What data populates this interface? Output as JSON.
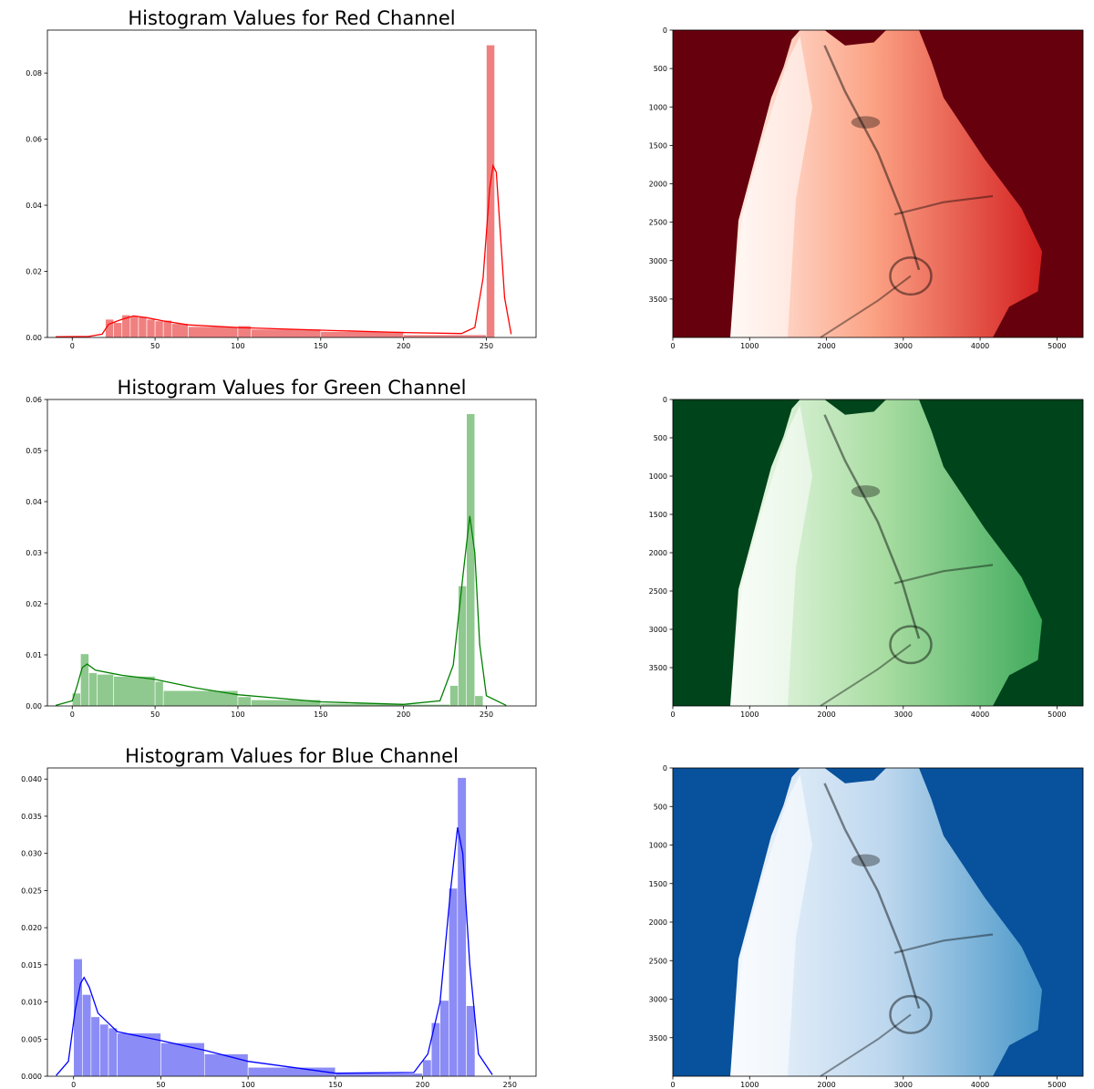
{
  "colors": {
    "red": "#ff0000",
    "red_fill": "#f08080",
    "red_bg": "#67000d",
    "green": "#008000",
    "green_fill": "#8fc98f",
    "green_bg": "#00441b",
    "blue": "#0000ff",
    "blue_fill": "#8c8cf6",
    "blue_bg": "#08519c"
  },
  "chart_data": [
    {
      "type": "bar",
      "title": "Histogram Values for Red Channel",
      "xlabel": "",
      "ylabel": "",
      "xlim": [
        -15,
        280
      ],
      "ylim": [
        0,
        0.093
      ],
      "xticks": [
        0,
        50,
        100,
        150,
        200,
        250
      ],
      "yticks": [
        0.0,
        0.02,
        0.04,
        0.06,
        0.08
      ],
      "ytick_labels": [
        "0.00",
        "0.02",
        "0.04",
        "0.06",
        "0.08"
      ],
      "bins": [
        {
          "x0": 20,
          "x1": 25,
          "v": 0.0055
        },
        {
          "x0": 25,
          "x1": 30,
          "v": 0.0045
        },
        {
          "x0": 30,
          "x1": 35,
          "v": 0.0068
        },
        {
          "x0": 35,
          "x1": 40,
          "v": 0.0065
        },
        {
          "x0": 40,
          "x1": 45,
          "v": 0.0062
        },
        {
          "x0": 45,
          "x1": 50,
          "v": 0.0055
        },
        {
          "x0": 50,
          "x1": 55,
          "v": 0.005
        },
        {
          "x0": 55,
          "x1": 60,
          "v": 0.0052
        },
        {
          "x0": 60,
          "x1": 70,
          "v": 0.0042
        },
        {
          "x0": 70,
          "x1": 100,
          "v": 0.0033
        },
        {
          "x0": 100,
          "x1": 108,
          "v": 0.0035
        },
        {
          "x0": 108,
          "x1": 150,
          "v": 0.0025
        },
        {
          "x0": 150,
          "x1": 200,
          "v": 0.0018
        },
        {
          "x0": 200,
          "x1": 250,
          "v": 0.0008
        },
        {
          "x0": 250,
          "x1": 255,
          "v": 0.0885
        }
      ],
      "kde": [
        [
          -10,
          0.0002
        ],
        [
          10,
          0.0003
        ],
        [
          18,
          0.001
        ],
        [
          22,
          0.004
        ],
        [
          30,
          0.0055
        ],
        [
          37,
          0.0065
        ],
        [
          45,
          0.006
        ],
        [
          55,
          0.005
        ],
        [
          70,
          0.0038
        ],
        [
          100,
          0.003
        ],
        [
          150,
          0.0022
        ],
        [
          200,
          0.0015
        ],
        [
          235,
          0.0012
        ],
        [
          243,
          0.003
        ],
        [
          248,
          0.018
        ],
        [
          252,
          0.045
        ],
        [
          254,
          0.052
        ],
        [
          256,
          0.05
        ],
        [
          258,
          0.035
        ],
        [
          261,
          0.012
        ],
        [
          265,
          0.001
        ]
      ]
    },
    {
      "type": "bar",
      "title": "Histogram Values for Green Channel",
      "xlabel": "",
      "ylabel": "",
      "xlim": [
        -15,
        280
      ],
      "ylim": [
        0,
        0.06
      ],
      "xticks": [
        0,
        50,
        100,
        150,
        200,
        250
      ],
      "yticks": [
        0.0,
        0.01,
        0.02,
        0.03,
        0.04,
        0.05,
        0.06
      ],
      "ytick_labels": [
        "0.00",
        "0.01",
        "0.02",
        "0.03",
        "0.04",
        "0.05",
        "0.06"
      ],
      "bins": [
        {
          "x0": 0,
          "x1": 5,
          "v": 0.0025
        },
        {
          "x0": 5,
          "x1": 10,
          "v": 0.0102
        },
        {
          "x0": 10,
          "x1": 15,
          "v": 0.0065
        },
        {
          "x0": 15,
          "x1": 25,
          "v": 0.0062
        },
        {
          "x0": 25,
          "x1": 50,
          "v": 0.0058
        },
        {
          "x0": 50,
          "x1": 55,
          "v": 0.0048
        },
        {
          "x0": 55,
          "x1": 100,
          "v": 0.003
        },
        {
          "x0": 100,
          "x1": 108,
          "v": 0.0018
        },
        {
          "x0": 108,
          "x1": 150,
          "v": 0.0012
        },
        {
          "x0": 150,
          "x1": 200,
          "v": 0.0005
        },
        {
          "x0": 200,
          "x1": 228,
          "v": 0.0003
        },
        {
          "x0": 228,
          "x1": 233,
          "v": 0.004
        },
        {
          "x0": 233,
          "x1": 238,
          "v": 0.0235
        },
        {
          "x0": 238,
          "x1": 243,
          "v": 0.0572
        },
        {
          "x0": 243,
          "x1": 248,
          "v": 0.002
        }
      ],
      "kde": [
        [
          -10,
          0.0001
        ],
        [
          0,
          0.001
        ],
        [
          3,
          0.004
        ],
        [
          6,
          0.0075
        ],
        [
          9,
          0.0082
        ],
        [
          14,
          0.007
        ],
        [
          30,
          0.006
        ],
        [
          50,
          0.0052
        ],
        [
          75,
          0.0035
        ],
        [
          100,
          0.0022
        ],
        [
          150,
          0.0008
        ],
        [
          200,
          0.0003
        ],
        [
          222,
          0.001
        ],
        [
          230,
          0.008
        ],
        [
          236,
          0.026
        ],
        [
          240,
          0.0372
        ],
        [
          243,
          0.03
        ],
        [
          246,
          0.012
        ],
        [
          250,
          0.002
        ],
        [
          262,
          0.0001
        ]
      ]
    },
    {
      "type": "bar",
      "title": "Histogram Values for Blue Channel",
      "xlabel": "",
      "ylabel": "",
      "xlim": [
        -15,
        265
      ],
      "ylim": [
        0,
        0.0415
      ],
      "xticks": [
        0,
        50,
        100,
        150,
        200,
        250
      ],
      "yticks": [
        0.0,
        0.005,
        0.01,
        0.015,
        0.02,
        0.025,
        0.03,
        0.035,
        0.04
      ],
      "ytick_labels": [
        "0.000",
        "0.005",
        "0.010",
        "0.015",
        "0.020",
        "0.025",
        "0.030",
        "0.035",
        "0.040"
      ],
      "bins": [
        {
          "x0": 0,
          "x1": 5,
          "v": 0.0158
        },
        {
          "x0": 5,
          "x1": 10,
          "v": 0.011
        },
        {
          "x0": 10,
          "x1": 15,
          "v": 0.008
        },
        {
          "x0": 15,
          "x1": 20,
          "v": 0.007
        },
        {
          "x0": 20,
          "x1": 25,
          "v": 0.0065
        },
        {
          "x0": 25,
          "x1": 50,
          "v": 0.0058
        },
        {
          "x0": 50,
          "x1": 75,
          "v": 0.0045
        },
        {
          "x0": 75,
          "x1": 100,
          "v": 0.003
        },
        {
          "x0": 100,
          "x1": 150,
          "v": 0.0012
        },
        {
          "x0": 150,
          "x1": 200,
          "v": 0.0004
        },
        {
          "x0": 200,
          "x1": 205,
          "v": 0.0022
        },
        {
          "x0": 205,
          "x1": 210,
          "v": 0.0072
        },
        {
          "x0": 210,
          "x1": 215,
          "v": 0.0102
        },
        {
          "x0": 215,
          "x1": 220,
          "v": 0.0253
        },
        {
          "x0": 220,
          "x1": 225,
          "v": 0.0402
        },
        {
          "x0": 225,
          "x1": 230,
          "v": 0.0095
        }
      ],
      "kde": [
        [
          -10,
          0.0001
        ],
        [
          -3,
          0.002
        ],
        [
          1,
          0.009
        ],
        [
          4,
          0.0125
        ],
        [
          6,
          0.0133
        ],
        [
          9,
          0.012
        ],
        [
          14,
          0.0085
        ],
        [
          25,
          0.006
        ],
        [
          50,
          0.0048
        ],
        [
          75,
          0.0035
        ],
        [
          100,
          0.002
        ],
        [
          150,
          0.0004
        ],
        [
          195,
          0.0005
        ],
        [
          203,
          0.003
        ],
        [
          210,
          0.01
        ],
        [
          216,
          0.025
        ],
        [
          220,
          0.0335
        ],
        [
          223,
          0.03
        ],
        [
          227,
          0.015
        ],
        [
          232,
          0.003
        ],
        [
          240,
          0.0002
        ]
      ]
    }
  ],
  "images": [
    {
      "name": "Reds",
      "yticks": [
        0,
        500,
        1000,
        1500,
        2000,
        2500,
        3000,
        3500
      ],
      "xticks": [
        0,
        1000,
        2000,
        3000,
        4000,
        5000
      ],
      "xlim": [
        0,
        5340
      ],
      "ylim": [
        0,
        4000
      ]
    },
    {
      "name": "Greens",
      "yticks": [
        0,
        500,
        1000,
        1500,
        2000,
        2500,
        3000,
        3500
      ],
      "xticks": [
        0,
        1000,
        2000,
        3000,
        4000,
        5000
      ],
      "xlim": [
        0,
        5340
      ],
      "ylim": [
        0,
        4000
      ]
    },
    {
      "name": "Blues",
      "yticks": [
        0,
        500,
        1000,
        1500,
        2000,
        2500,
        3000,
        3500
      ],
      "xticks": [
        0,
        1000,
        2000,
        3000,
        4000,
        5000
      ],
      "xlim": [
        0,
        5340
      ],
      "ylim": [
        0,
        4000
      ]
    }
  ]
}
